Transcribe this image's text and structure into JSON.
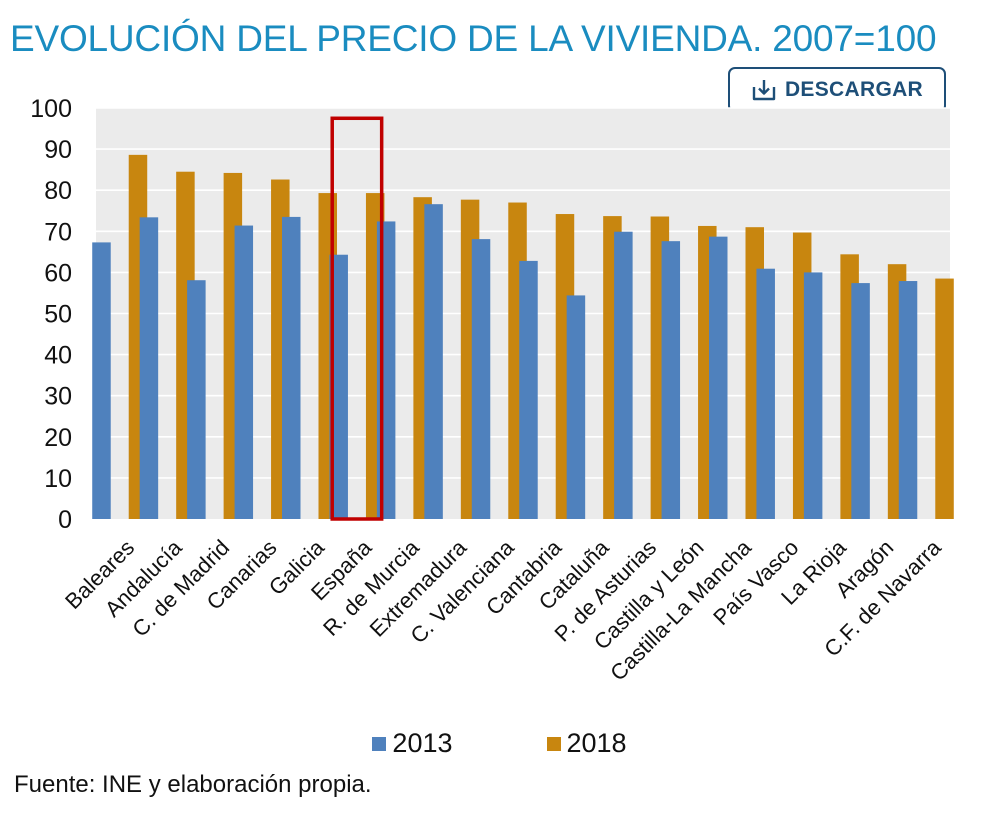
{
  "header": {
    "title": "EVOLUCIÓN DEL PRECIO DE LA VIVIENDA. 2007=100",
    "download_label": "DESCARGAR"
  },
  "chart_data": {
    "type": "bar",
    "title": "EVOLUCIÓN DEL PRECIO DE LA VIVIENDA. 2007=100",
    "xlabel": "",
    "ylabel": "",
    "ylim": [
      0,
      100
    ],
    "yticks": [
      0,
      10,
      20,
      30,
      40,
      50,
      60,
      70,
      80,
      90,
      100
    ],
    "grid": true,
    "legend": "bottom",
    "categories": [
      "Baleares",
      "Andalucía",
      "C. de Madrid",
      "Canarias",
      "Galicia",
      "España",
      "R. de Murcia",
      "Extremadura",
      "C. Valenciana",
      "Cantabria",
      "Cataluña",
      "P. de Asturias",
      "Castilla y León",
      "Castilla-La Mancha",
      "País Vasco",
      "La Rioja",
      "Aragón",
      "C.F. de Navarra"
    ],
    "highlight": "España",
    "series": [
      {
        "name": "2013",
        "color": "#4f81bd",
        "values": [
          67.3,
          73.4,
          58.1,
          71.4,
          73.5,
          64.3,
          72.4,
          76.6,
          68.1,
          62.8,
          54.4,
          69.9,
          67.6,
          68.7,
          60.9,
          60.0,
          57.4,
          57.9
        ]
      },
      {
        "name": "2018",
        "color": "#c8860f",
        "values": [
          88.6,
          84.5,
          84.2,
          82.6,
          79.3,
          79.3,
          78.3,
          77.7,
          77.0,
          74.2,
          73.7,
          73.6,
          71.3,
          71.0,
          69.7,
          64.4,
          62.0,
          58.5
        ]
      }
    ]
  },
  "colors": {
    "plot_bg": "#ebebeb",
    "grid": "#ffffff",
    "highlight": "#c00000",
    "title": "#1a8cc0",
    "button_border": "#1e4f78"
  },
  "footer": {
    "source": "Fuente: INE y elaboración propia."
  }
}
